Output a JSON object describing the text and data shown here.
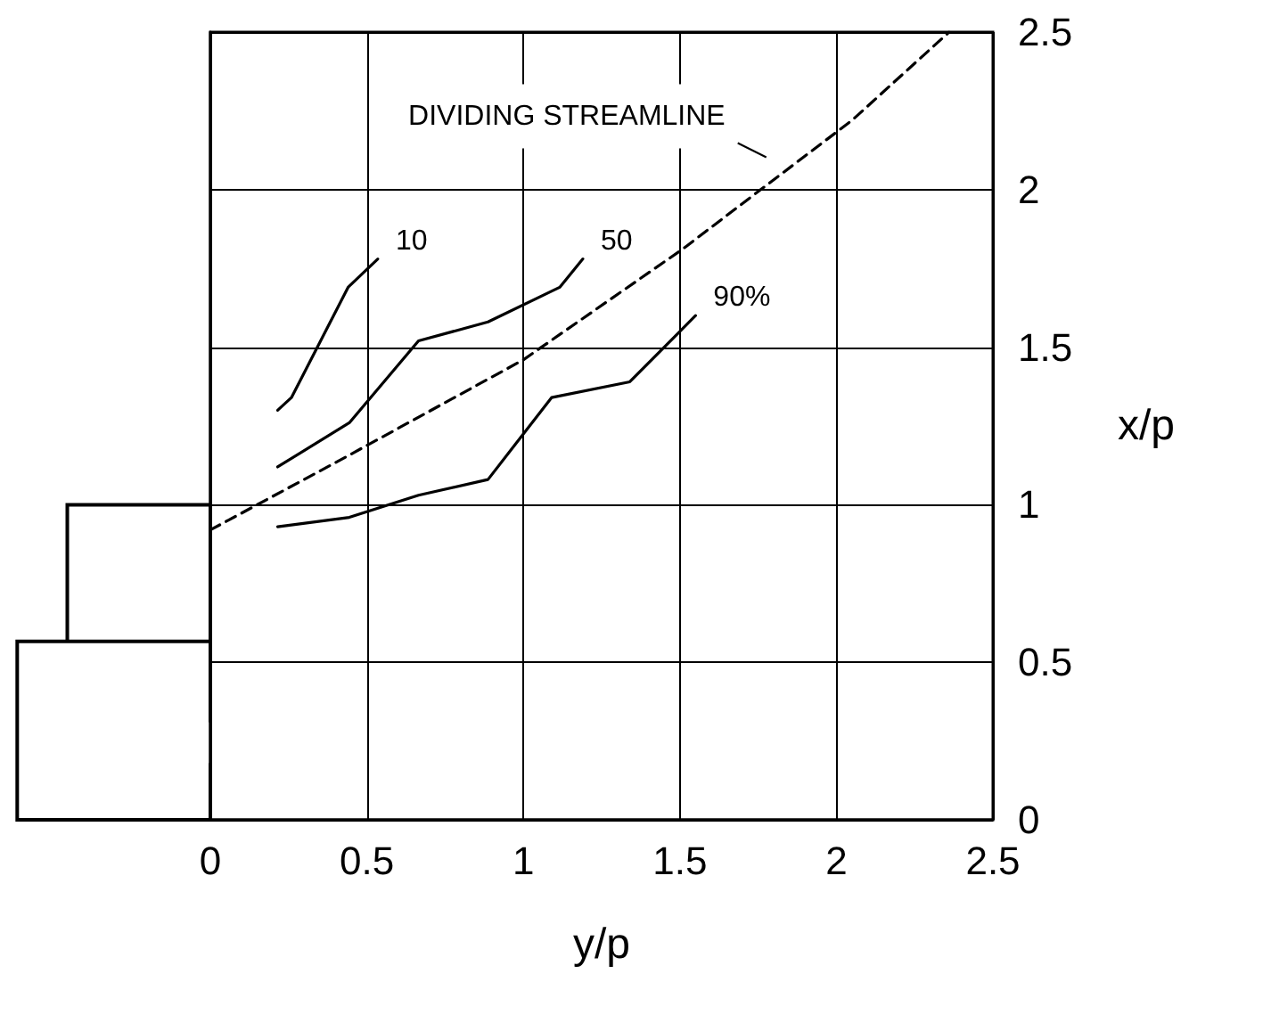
{
  "chart_data": {
    "type": "line",
    "xlabel": "y/p",
    "ylabel": "x/p",
    "xlim": [
      0,
      2.5
    ],
    "xticks": [
      0,
      0.5,
      1,
      1.5,
      2,
      2.5
    ],
    "ylim": [
      0,
      2.5
    ],
    "yticks": [
      0,
      0.5,
      1,
      1.5,
      2,
      2.5
    ],
    "grid": true,
    "legend": false,
    "marker": "none",
    "series": [
      {
        "name": "10",
        "color": "#000000",
        "line_style": "solid",
        "x": [
          0.215,
          0.259,
          0.44,
          0.535
        ],
        "values": [
          1.3,
          1.34,
          1.69,
          1.78
        ]
      },
      {
        "name": "50",
        "color": "#000000",
        "line_style": "solid",
        "x": [
          0.215,
          0.444,
          0.665,
          0.887,
          1.116,
          1.19
        ],
        "values": [
          1.12,
          1.26,
          1.52,
          1.58,
          1.69,
          1.78
        ]
      },
      {
        "name": "90%",
        "color": "#000000",
        "line_style": "solid",
        "x": [
          0.215,
          0.444,
          0.665,
          0.887,
          1.09,
          1.34,
          1.55
        ],
        "values": [
          0.93,
          0.96,
          1.03,
          1.08,
          1.34,
          1.39,
          1.6
        ]
      },
      {
        "color": "#000000",
        "line_style": "dashed",
        "x": [
          0,
          0.43,
          1.0,
          1.507,
          1.745,
          2.05,
          2.36
        ],
        "values": [
          0.92,
          1.15,
          1.46,
          1.81,
          1.99,
          2.22,
          2.5
        ]
      }
    ],
    "annotations": [
      {
        "text": "DIVIDING STREAMLINE",
        "x": 1.85,
        "y": 2.08
      }
    ]
  }
}
